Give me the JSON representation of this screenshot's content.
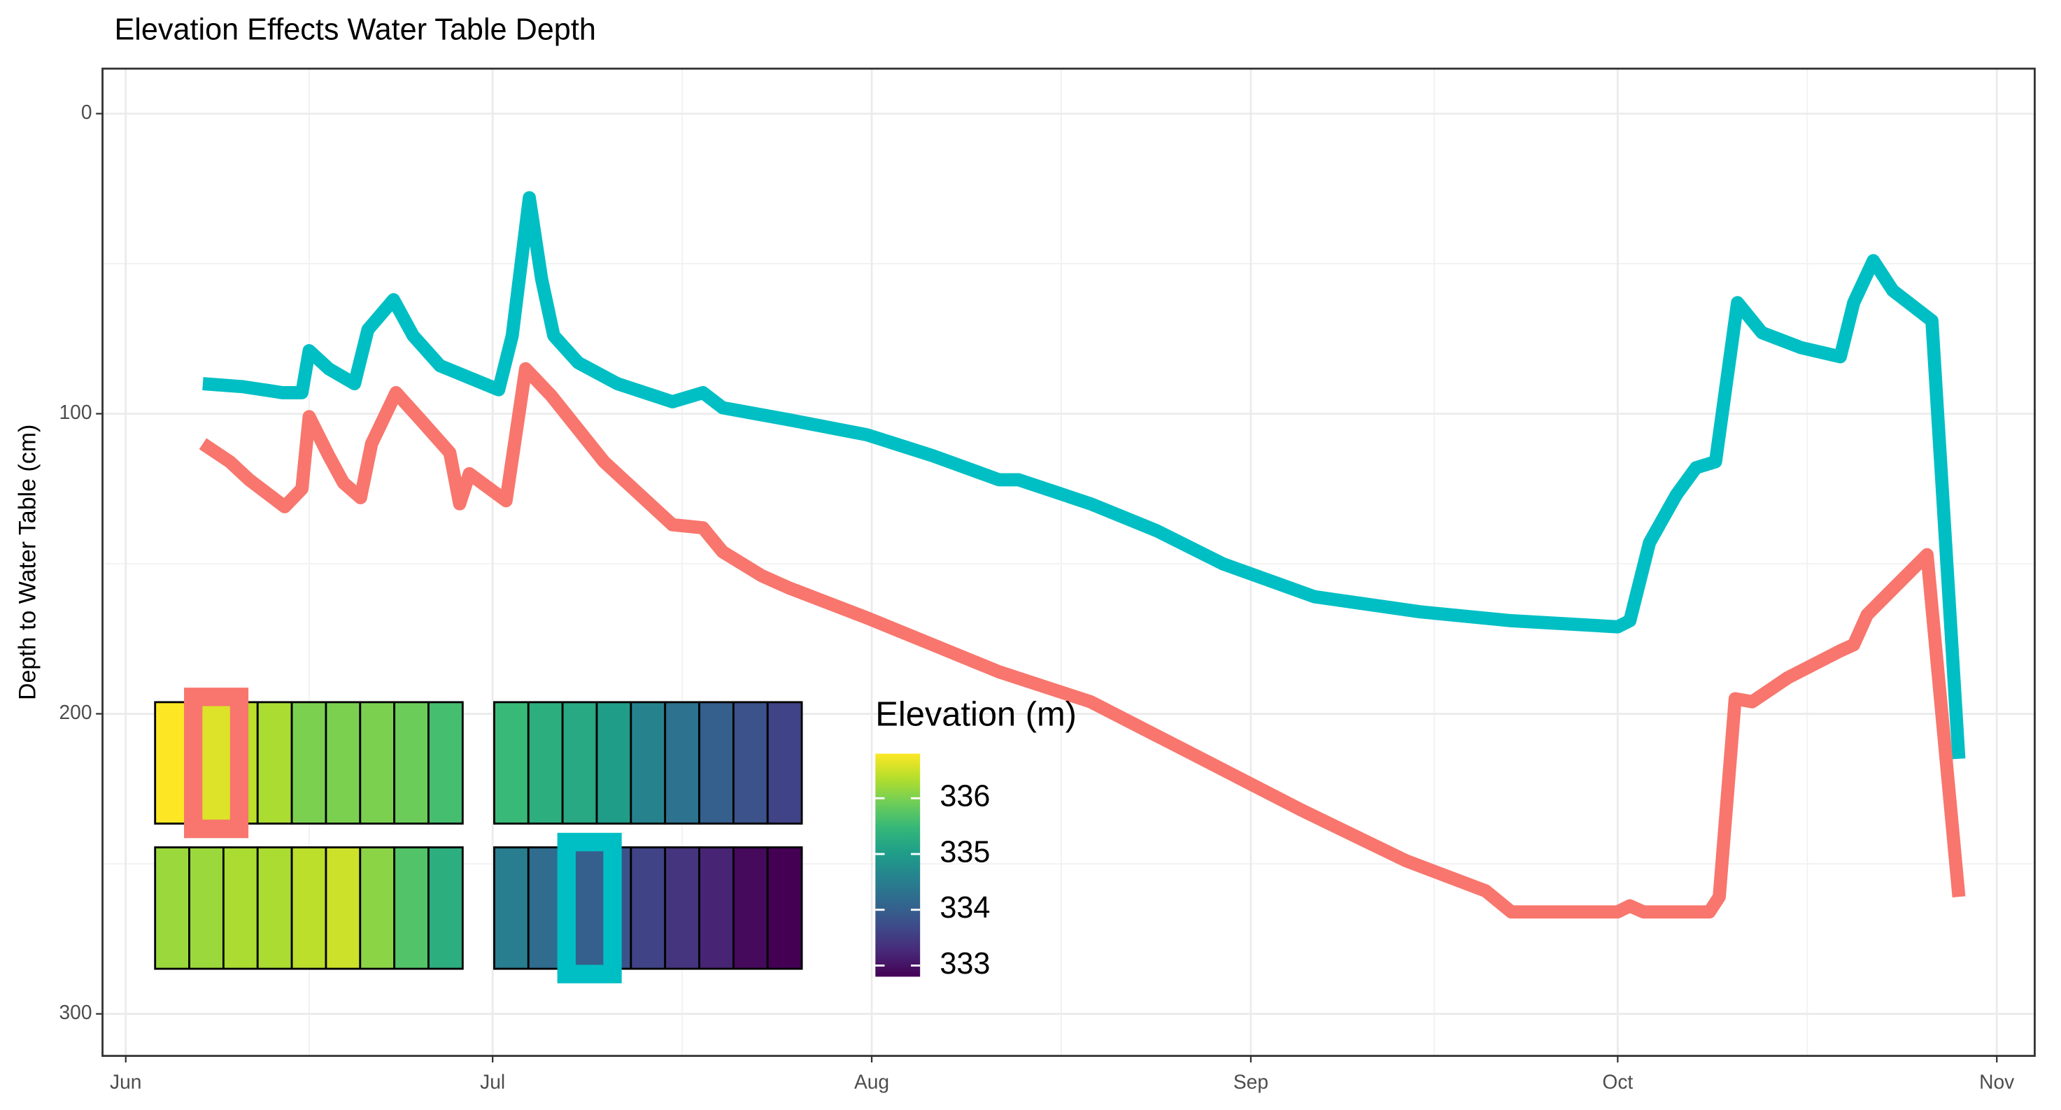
{
  "chart_data": {
    "type": "line",
    "title": "Elevation Effects Water Table Depth",
    "y_label": "Depth to Water Table (cm)",
    "xlim": [
      -1.9,
      156.1
    ],
    "xticks": [
      {
        "value": 0,
        "label": "Jun"
      },
      {
        "value": 30,
        "label": "Jul"
      },
      {
        "value": 61,
        "label": "Aug"
      },
      {
        "value": 92,
        "label": "Sep"
      },
      {
        "value": 122,
        "label": "Oct"
      },
      {
        "value": 153,
        "label": "Nov"
      }
    ],
    "x_minor_ticks": [
      15,
      45.5,
      76.5,
      107,
      137.5
    ],
    "ylim": [
      -15,
      314
    ],
    "y_reversed": true,
    "yticks": [
      0,
      100,
      200,
      300
    ],
    "y_minor_ticks": [
      50,
      150,
      250
    ],
    "grid": true,
    "series": [
      {
        "color": "#00BFC4",
        "x": [
          6.3,
          9.6,
          12.8,
          14.4,
          15,
          16.6,
          18.7,
          19.8,
          21.9,
          23.5,
          25.7,
          30.5,
          31.6,
          33,
          34,
          35,
          37,
          40.2,
          44.7,
          47.2,
          48.8,
          54.2,
          60.6,
          66,
          71.4,
          73,
          78.9,
          84.3,
          89.7,
          97.2,
          105.8,
          113.3,
          122,
          123,
          124.6,
          126.8,
          128.4,
          130,
          131.8,
          133.8,
          137,
          140.2,
          141.3,
          142.9,
          144.5,
          147.7,
          149.9
        ],
        "values": [
          90,
          91,
          93,
          93,
          79,
          85,
          90,
          72,
          62,
          74,
          84,
          92,
          74,
          28,
          55,
          74,
          83,
          90,
          96,
          93,
          98,
          102,
          107,
          114,
          122,
          122,
          130,
          139,
          150,
          161,
          166,
          169,
          171,
          169,
          143,
          127,
          118,
          116,
          63,
          73,
          78,
          81,
          63,
          49,
          59,
          69,
          215
        ]
      },
      {
        "color": "#F8766D",
        "x": [
          6.3,
          8.5,
          10.1,
          13,
          14.4,
          15,
          16.6,
          17.8,
          19.2,
          20.1,
          22.1,
          24.1,
          26.5,
          27.3,
          28.1,
          31.1,
          32.7,
          34.8,
          39.1,
          44.7,
          47.2,
          48.8,
          52,
          54.2,
          60.6,
          66,
          71.4,
          78.9,
          87.5,
          96.1,
          104.7,
          111.2,
          113.3,
          122,
          123,
          124.1,
          129.5,
          130.3,
          131.6,
          133,
          135.9,
          140.2,
          141.3,
          142.4,
          144.1,
          147.3,
          149.9
        ],
        "values": [
          110,
          116,
          122,
          131,
          125,
          101,
          114,
          123,
          128,
          110,
          93,
          102,
          113,
          130,
          120,
          129,
          85,
          94,
          116,
          137,
          138,
          146,
          154,
          158,
          168,
          177,
          186,
          196,
          214,
          232,
          249,
          259,
          266,
          266,
          264,
          266,
          266,
          261,
          195,
          196,
          188,
          179,
          177,
          167,
          160,
          147,
          261
        ]
      }
    ],
    "inset": {
      "legend_title": "Elevation (m)",
      "colorlim": [
        332.8,
        336.8
      ],
      "colorticks": [
        333,
        334,
        335,
        336
      ],
      "colormap": "viridis",
      "blocks": [
        {
          "values": [
            336.8,
            336.6,
            336.4,
            336.3,
            336.0,
            336.0,
            336.0,
            335.9,
            335.6
          ],
          "highlight": 1,
          "highlight_color": "#F8766D"
        },
        {
          "values": [
            335.5,
            335.3,
            335.2,
            335.0,
            334.6,
            334.3,
            334.0,
            333.8,
            333.6
          ]
        },
        {
          "values": [
            336.2,
            336.2,
            336.3,
            336.3,
            336.4,
            336.5,
            336.1,
            335.7,
            335.3
          ]
        },
        {
          "values": [
            334.5,
            334.2,
            334.0,
            333.8,
            333.6,
            333.4,
            333.2,
            332.9,
            332.8
          ],
          "highlight": 2,
          "highlight_color": "#00BFC4"
        }
      ]
    }
  }
}
